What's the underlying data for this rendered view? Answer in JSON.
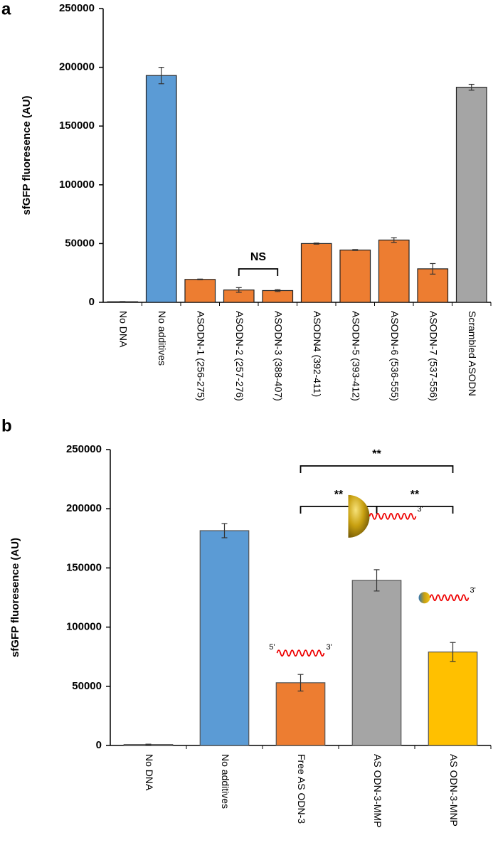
{
  "chart_data": [
    {
      "type": "bar",
      "panel": "a",
      "y_label": "sfGFP fluoresence (AU)",
      "categories": [
        "No DNA",
        "No additives",
        "ASODN-1 (256-275)",
        "ASODN-2 (257-276)",
        "ASODN-3 (388-407)",
        "ASODN4 (392-411)",
        "ASODN-5 (393-412)",
        "ASODN-6 (536-555)",
        "ASODN-7 (537-556)",
        "Scrambled ASODN"
      ],
      "values": [
        500,
        193000,
        19500,
        10500,
        10000,
        50000,
        44500,
        53000,
        28500,
        183000
      ],
      "errors": [
        200,
        7000,
        300,
        2000,
        800,
        500,
        400,
        2000,
        4500,
        2500
      ],
      "colors": [
        "#ffffff",
        "#5b9bd5",
        "#ed7d31",
        "#ed7d31",
        "#ed7d31",
        "#ed7d31",
        "#ed7d31",
        "#ed7d31",
        "#ed7d31",
        "#a5a5a5"
      ],
      "ylim": [
        0,
        250000
      ],
      "yticks": [
        0,
        50000,
        100000,
        150000,
        200000,
        250000
      ],
      "annotations": [
        {
          "text": "NS",
          "between": [
            "ASODN-2 (257-276)",
            "ASODN-3 (388-407)"
          ]
        }
      ]
    },
    {
      "type": "bar",
      "panel": "b",
      "y_label": "sfGFP fluoresence (AU)",
      "categories": [
        "No DNA",
        "No additives",
        "Free AS ODN-3",
        "AS ODN-3-MMP",
        "AS ODN-3-MNP"
      ],
      "values": [
        800,
        181500,
        53000,
        139500,
        79000
      ],
      "errors": [
        300,
        6000,
        7000,
        9000,
        8000
      ],
      "colors": [
        "#ffffff",
        "#5b9bd5",
        "#ed7d31",
        "#a5a5a5",
        "#ffc000"
      ],
      "ylim": [
        0,
        250000
      ],
      "yticks": [
        0,
        50000,
        100000,
        150000,
        200000,
        250000
      ],
      "annotations": [
        {
          "text": "**",
          "between": [
            "Free AS ODN-3",
            "AS ODN-3-MNP"
          ]
        },
        {
          "text": "**",
          "between": [
            "Free AS ODN-3",
            "AS ODN-3-MMP"
          ]
        },
        {
          "text": "**",
          "between": [
            "AS ODN-3-MMP",
            "AS ODN-3-MNP"
          ]
        }
      ],
      "icons": [
        {
          "for": "Free AS ODN-3",
          "particle": "none",
          "labels": [
            "5'",
            "3'"
          ]
        },
        {
          "for": "AS ODN-3-MMP",
          "particle": "large",
          "labels": [
            "3'"
          ]
        },
        {
          "for": "AS ODN-3-MNP",
          "particle": "small",
          "labels": [
            "3'"
          ]
        }
      ]
    }
  ]
}
